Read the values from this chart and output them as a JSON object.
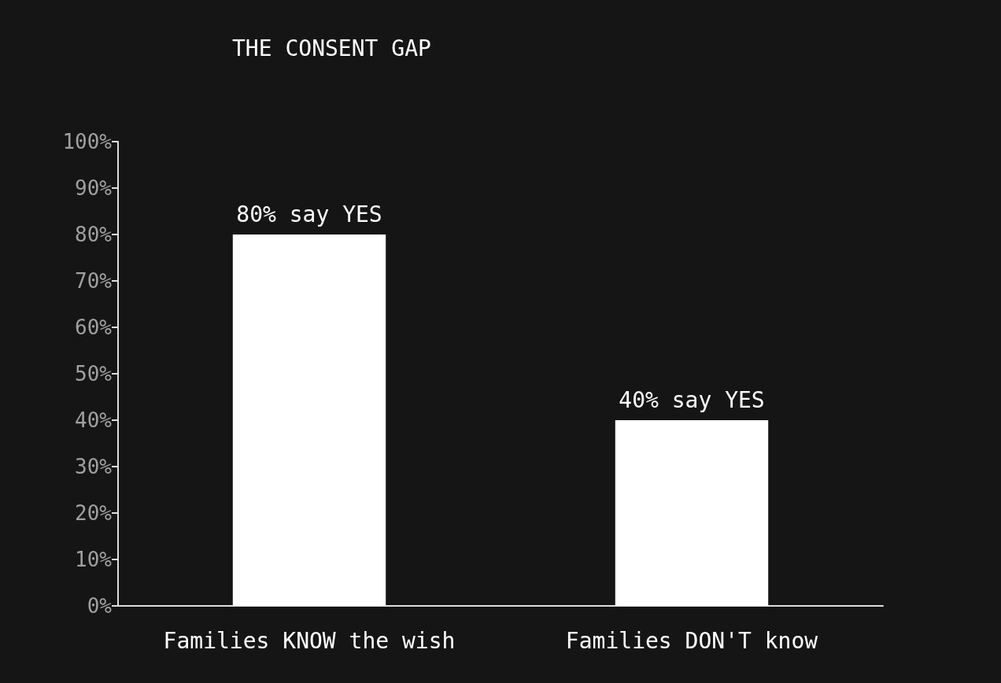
{
  "chart_data": {
    "type": "bar",
    "title": "THE CONSENT GAP",
    "categories": [
      "Families KNOW the wish",
      "Families DON'T know"
    ],
    "values": [
      80,
      40
    ],
    "color": "#ffffff",
    "value_labels": [
      "80% say YES",
      "40% say YES"
    ],
    "ylim": [
      0,
      100
    ],
    "yticks": [
      {
        "value": 0,
        "label": "0%"
      },
      {
        "value": 10,
        "label": "10%"
      },
      {
        "value": 20,
        "label": "20%"
      },
      {
        "value": 30,
        "label": "30%"
      },
      {
        "value": 40,
        "label": "40%"
      },
      {
        "value": 50,
        "label": "50%"
      },
      {
        "value": 60,
        "label": "60%"
      },
      {
        "value": 70,
        "label": "70%"
      },
      {
        "value": 80,
        "label": "80%"
      },
      {
        "value": 90,
        "label": "90%"
      },
      {
        "value": 100,
        "label": "100%"
      }
    ],
    "grid": false
  }
}
